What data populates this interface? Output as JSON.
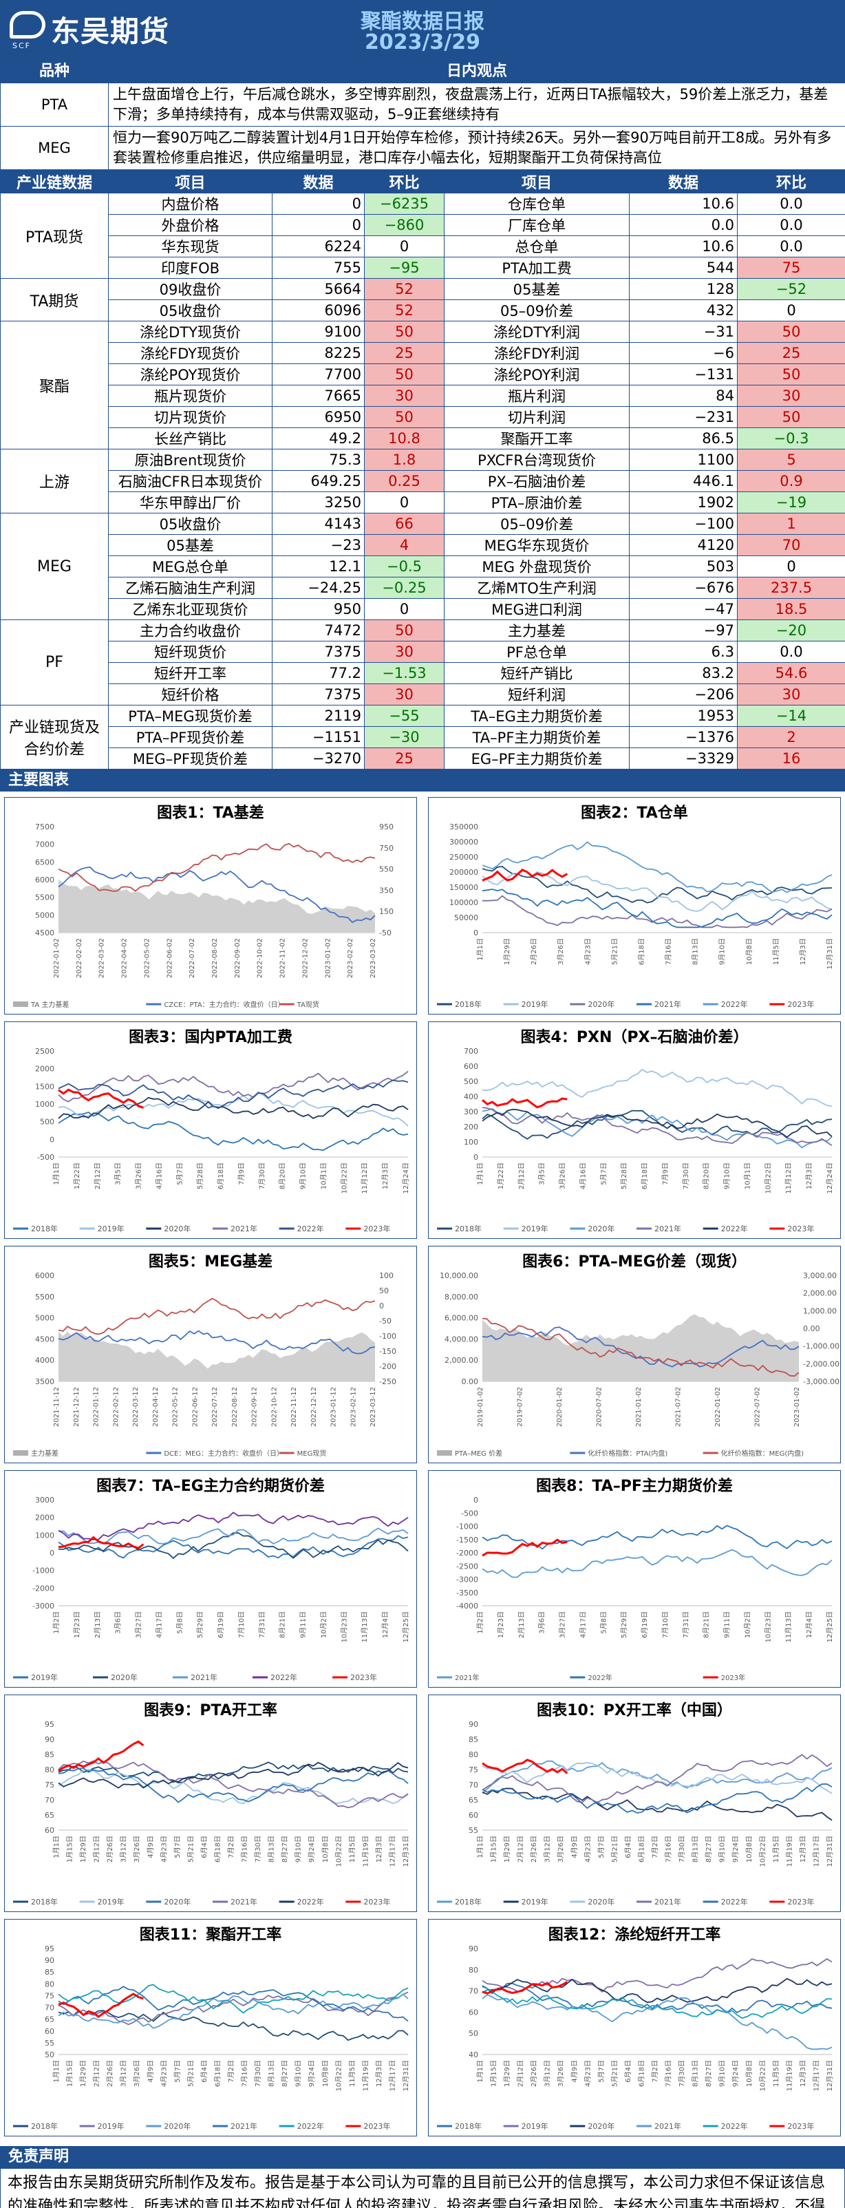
{
  "header": {
    "logo_text": "东吴期货",
    "logo_en": "SCF",
    "title": "聚酯数据日报",
    "date": "2023/3/29"
  },
  "view": {
    "col_product": "品种",
    "col_view": "日内观点",
    "rows": [
      {
        "product": "PTA",
        "text": "上午盘面增仓上行，午后减仓跳水，多空博弈剧烈，夜盘震荡上行，近两日TA振幅较大，59价差上涨乏力，基差下滑；多单持续持有，成本与供需双驱动，5–9正套继续持有"
      },
      {
        "product": "MEG",
        "text": "恒力一套90万吨乙二醇装置计划4月1日开始停车检修，预计持续26天。另外一套90万吨目前开工8成。另外有多套装置检修重启推迟，供应缩量明显，港口库存小幅去化，短期聚酯开工负荷保持高位"
      }
    ]
  },
  "table": {
    "headers": [
      "产业链数据",
      "项目",
      "数据",
      "环比",
      "项目",
      "数据",
      "环比"
    ],
    "groups": [
      {
        "name": "PTA现货",
        "rows": [
          [
            "内盘价格",
            "0",
            "−6235",
            "仓库仓单",
            "10.6",
            "0.0"
          ],
          [
            "外盘价格",
            "0",
            "−860",
            "厂库仓单",
            "0.0",
            "0.0"
          ],
          [
            "华东现货",
            "6224",
            "0",
            "总仓单",
            "10.6",
            "0.0"
          ],
          [
            "印度FOB",
            "755",
            "−95",
            "PTA加工费",
            "544",
            "75"
          ]
        ]
      },
      {
        "name": "TA期货",
        "rows": [
          [
            "09收盘价",
            "5664",
            "52",
            "05基差",
            "128",
            "−52"
          ],
          [
            "05收盘价",
            "6096",
            "52",
            "05–09价差",
            "432",
            "0"
          ]
        ]
      },
      {
        "name": "聚酯",
        "rows": [
          [
            "涤纶DTY现货价",
            "9100",
            "50",
            "涤纶DTY利润",
            "−31",
            "50"
          ],
          [
            "涤纶FDY现货价",
            "8225",
            "25",
            "涤纶FDY利润",
            "−6",
            "25"
          ],
          [
            "涤纶POY现货价",
            "7700",
            "50",
            "涤纶POY利润",
            "−131",
            "50"
          ],
          [
            "瓶片现货价",
            "7665",
            "30",
            "瓶片利润",
            "84",
            "30"
          ],
          [
            "切片现货价",
            "6950",
            "50",
            "切片利润",
            "−231",
            "50"
          ],
          [
            "长丝产销比",
            "49.2",
            "10.8",
            "聚酯开工率",
            "86.5",
            "−0.3"
          ]
        ]
      },
      {
        "name": "上游",
        "rows": [
          [
            "原油Brent现货价",
            "75.3",
            "1.8",
            "PXCFR台湾现货价",
            "1100",
            "5"
          ],
          [
            "石脑油CFR日本现货价",
            "649.25",
            "0.25",
            "PX–石脑油价差",
            "446.1",
            "0.9"
          ],
          [
            "华东甲醇出厂价",
            "3250",
            "0",
            "PTA–原油价差",
            "1902",
            "−19"
          ]
        ]
      },
      {
        "name": "MEG",
        "rows": [
          [
            "05收盘价",
            "4143",
            "66",
            "05–09价差",
            "−100",
            "1"
          ],
          [
            "05基差",
            "−23",
            "4",
            "MEG华东现货价",
            "4120",
            "70"
          ],
          [
            "MEG总仓单",
            "12.1",
            "−0.5",
            "MEG 外盘现货价",
            "503",
            "0"
          ],
          [
            "乙烯石脑油生产利润",
            "−24.25",
            "−0.25",
            "乙烯MTO生产利润",
            "−676",
            "237.5"
          ],
          [
            "乙烯东北亚现货价",
            "950",
            "0",
            "MEG进口利润",
            "−47",
            "18.5"
          ]
        ]
      },
      {
        "name": "PF",
        "rows": [
          [
            "主力合约收盘价",
            "7472",
            "50",
            "主力基差",
            "−97",
            "−20"
          ],
          [
            "短纤现货价",
            "7375",
            "30",
            "PF总仓单",
            "6.3",
            "0.0"
          ],
          [
            "短纤开工率",
            "77.2",
            "−1.53",
            "短纤产销比",
            "83.2",
            "54.6"
          ],
          [
            "短纤价格",
            "7375",
            "30",
            "短纤利润",
            "−206",
            "30"
          ]
        ]
      },
      {
        "name": "产业链现货及合约价差",
        "rows": [
          [
            "PTA–MEG现货价差",
            "2119",
            "−55",
            "TA–EG主力期货价差",
            "1953",
            "−14"
          ],
          [
            "PTA–PF现货价差",
            "−1151",
            "−30",
            "TA–PF主力期货价差",
            "−1376",
            "2"
          ],
          [
            "MEG–PF现货价差",
            "−3270",
            "25",
            "EG–PF主力期货价差",
            "−3329",
            "16"
          ]
        ]
      }
    ]
  },
  "charts_section_title": "主要图表",
  "charts": [
    {
      "title": "图表1：TA基差",
      "xticks": [
        "2022-01-02",
        "2022-02-02",
        "2022-03-02",
        "2022-04-02",
        "2022-05-02",
        "2022-06-02",
        "2022-07-02",
        "2022-08-02",
        "2022-09-02",
        "2022-10-02",
        "2022-11-02",
        "2022-12-02",
        "2023-01-02",
        "2023-02-02",
        "2023-03-02"
      ],
      "yleft": [
        "7500",
        "7000",
        "6500",
        "6000",
        "5500",
        "5000",
        "4500"
      ],
      "yright": [
        "950",
        "750",
        "550",
        "350",
        "150",
        "-50"
      ],
      "legend": [
        {
          "label": "TA 主力基差",
          "color": "#b0b0b0"
        },
        {
          "label": "CZCE：PTA：主力合约：收盘价（日）",
          "color": "#4472c4"
        },
        {
          "label": "TA现货",
          "color": "#c0504d"
        }
      ]
    },
    {
      "title": "图表2：TA仓单",
      "xticks": [
        "1月1日",
        "1月29日",
        "2月26日",
        "3月26日",
        "4月23日",
        "5月21日",
        "6月18日",
        "7月16日",
        "8月13日",
        "9月10日",
        "10月8日",
        "11月5日",
        "12月3日",
        "12月31日"
      ],
      "yleft": [
        "350000",
        "300000",
        "250000",
        "200000",
        "150000",
        "100000",
        "50000",
        "0"
      ],
      "legend": [
        {
          "label": "2018年",
          "color": "#1f4e79"
        },
        {
          "label": "2019年",
          "color": "#9dc3e6"
        },
        {
          "label": "2020年",
          "color": "#7f6fa8"
        },
        {
          "label": "2021年",
          "color": "#2e75b6"
        },
        {
          "label": "2022年",
          "color": "#5b9bd5"
        },
        {
          "label": "2023年",
          "color": "#ff0000"
        }
      ]
    },
    {
      "title": "图表3：国内PTA加工费",
      "xticks": [
        "1月1日",
        "1月22日",
        "2月12日",
        "3月5日",
        "3月26日",
        "4月16日",
        "5月7日",
        "5月28日",
        "6月18日",
        "7月9日",
        "7月30日",
        "8月20日",
        "9月10日",
        "10月1日",
        "10月22日",
        "11月12日",
        "12月3日",
        "12月24日"
      ],
      "yleft": [
        "2500",
        "2000",
        "1500",
        "1000",
        "500",
        "0",
        "-500"
      ],
      "legend": [
        {
          "label": "2018年",
          "color": "#2e75b6"
        },
        {
          "label": "2019年",
          "color": "#9dc3e6"
        },
        {
          "label": "2020年",
          "color": "#1f3864"
        },
        {
          "label": "2021年",
          "color": "#7f6fa8"
        },
        {
          "label": "2022年",
          "color": "#2f5597"
        },
        {
          "label": "2023年",
          "color": "#ff0000"
        }
      ]
    },
    {
      "title": "图表4：PXN（PX–石脑油价差）",
      "xticks": [
        "1月1日",
        "1月22日",
        "2月12日",
        "3月5日",
        "3月26日",
        "4月16日",
        "5月7日",
        "5月28日",
        "6月18日",
        "7月9日",
        "7月30日",
        "8月20日",
        "9月10日",
        "10月1日",
        "10月22日",
        "11月12日",
        "12月3日",
        "12月24日"
      ],
      "yleft": [
        "700",
        "600",
        "500",
        "400",
        "300",
        "200",
        "100",
        "0"
      ],
      "legend": [
        {
          "label": "2018年",
          "color": "#1f4e79"
        },
        {
          "label": "2019年",
          "color": "#9dc3e6"
        },
        {
          "label": "2020年",
          "color": "#5b9bd5"
        },
        {
          "label": "2021年",
          "color": "#7f6fa8"
        },
        {
          "label": "2022年",
          "color": "#1f3864"
        },
        {
          "label": "2023年",
          "color": "#ff0000"
        }
      ]
    },
    {
      "title": "图表5：MEG基差",
      "xticks": [
        "2021-11-12",
        "2021-12-12",
        "2022-01-12",
        "2022-02-12",
        "2022-03-12",
        "2022-04-12",
        "2022-05-12",
        "2022-06-12",
        "2022-07-12",
        "2022-08-12",
        "2022-09-12",
        "2022-10-12",
        "2022-11-12",
        "2022-12-12",
        "2023-01-12",
        "2023-02-12",
        "2023-03-12"
      ],
      "yleft": [
        "6000",
        "5500",
        "5000",
        "4500",
        "4000",
        "3500"
      ],
      "yright": [
        "100",
        "50",
        "0",
        "-50",
        "-100",
        "-150",
        "-200",
        "-250"
      ],
      "legend": [
        {
          "label": "主力基差",
          "color": "#b0b0b0"
        },
        {
          "label": "DCE：MEG：主力合约：收盘价（日）",
          "color": "#4472c4"
        },
        {
          "label": "MEG现货",
          "color": "#c0504d"
        }
      ]
    },
    {
      "title": "图表6：PTA–MEG价差（现货）",
      "xticks": [
        "2019-01-02",
        "2019-07-02",
        "2020-01-02",
        "2020-07-02",
        "2021-01-02",
        "2021-07-02",
        "2022-01-02",
        "2022-07-02",
        "2023-01-02"
      ],
      "yleft": [
        "10,000.00",
        "8,000.00",
        "6,000.00",
        "4,000.00",
        "2,000.00",
        "0.00"
      ],
      "yright": [
        "3,000.00",
        "2,000.00",
        "1,000.00",
        "0.00",
        "-1,000.00",
        "-2,000.00",
        "-3,000.00"
      ],
      "legend": [
        {
          "label": "PTA–MEG 价差",
          "color": "#b0b0b0"
        },
        {
          "label": "化纤价格指数：PTA(内盘)",
          "color": "#4472c4"
        },
        {
          "label": "化纤价格指数：MEG(内盘)",
          "color": "#c0504d"
        }
      ]
    },
    {
      "title": "图表7：TA–EG主力合约期货价差",
      "xticks": [
        "1月2日",
        "1月23日",
        "2月13日",
        "3月6日",
        "3月27日",
        "4月17日",
        "5月8日",
        "5月29日",
        "6月19日",
        "7月10日",
        "7月31日",
        "8月21日",
        "9月11日",
        "10月2日",
        "10月23日",
        "11月13日",
        "12月4日",
        "12月25日"
      ],
      "yleft": [
        "3000",
        "2000",
        "1000",
        "0",
        "-1000",
        "-2000",
        "-3000"
      ],
      "legend": [
        {
          "label": "2019年",
          "color": "#2e75b6"
        },
        {
          "label": "2020年",
          "color": "#1f4e79"
        },
        {
          "label": "2021年",
          "color": "#5b9bd5"
        },
        {
          "label": "2022年",
          "color": "#7030a0"
        },
        {
          "label": "2023年",
          "color": "#ff0000"
        }
      ]
    },
    {
      "title": "图表8：TA–PF主力期货价差",
      "xticks": [
        "1月2日",
        "1月23日",
        "2月13日",
        "3月6日",
        "3月27日",
        "4月17日",
        "5月8日",
        "5月29日",
        "6月19日",
        "7月10日",
        "7月31日",
        "8月21日",
        "9月11日",
        "10月2日",
        "10月23日",
        "11月13日",
        "12月4日",
        "12月25日"
      ],
      "yleft": [
        "0",
        "-500",
        "-1000",
        "-1500",
        "-2000",
        "-2500",
        "-3000",
        "-3500",
        "-4000"
      ],
      "legend": [
        {
          "label": "2021年",
          "color": "#5b9bd5"
        },
        {
          "label": "2022年",
          "color": "#2e75b6"
        },
        {
          "label": "2023年",
          "color": "#ff0000"
        }
      ]
    },
    {
      "title": "图表9：PTA开工率",
      "xticks": [
        "1月1日",
        "1月15日",
        "1月29日",
        "2月12日",
        "2月26日",
        "3月12日",
        "3月26日",
        "4月9日",
        "4月23日",
        "5月7日",
        "5月21日",
        "6月4日",
        "6月18日",
        "7月2日",
        "7月16日",
        "7月30日",
        "8月13日",
        "8月27日",
        "9月10日",
        "9月24日",
        "10月8日",
        "10月22日",
        "11月5日",
        "11月19日",
        "12月3日",
        "12月17日",
        "12月31日"
      ],
      "yleft": [
        "95",
        "90",
        "85",
        "80",
        "75",
        "70",
        "65",
        "60"
      ],
      "legend": [
        {
          "label": "2018年",
          "color": "#1f4e79"
        },
        {
          "label": "2019年",
          "color": "#9dc3e6"
        },
        {
          "label": "2020年",
          "color": "#2e75b6"
        },
        {
          "label": "2021年",
          "color": "#7f6fa8"
        },
        {
          "label": "2022年",
          "color": "#1f3864"
        },
        {
          "label": "2023年",
          "color": "#ff0000"
        }
      ]
    },
    {
      "title": "图表10：PX开工率（中国）",
      "xticks": [
        "1月1日",
        "1月15日",
        "1月29日",
        "2月12日",
        "2月26日",
        "3月12日",
        "3月26日",
        "4月9日",
        "4月23日",
        "5月7日",
        "5月21日",
        "6月4日",
        "6月18日",
        "7月2日",
        "7月16日",
        "7月30日",
        "8月13日",
        "8月27日",
        "9月10日",
        "9月24日",
        "10月8日",
        "10月22日",
        "11月5日",
        "11月19日",
        "12月3日",
        "12月17日",
        "12月31日"
      ],
      "yleft": [
        "90",
        "85",
        "80",
        "75",
        "70",
        "65",
        "60",
        "55"
      ],
      "legend": [
        {
          "label": "2018年",
          "color": "#5b9bd5"
        },
        {
          "label": "2019年",
          "color": "#1f3864"
        },
        {
          "label": "2020年",
          "color": "#9dc3e6"
        },
        {
          "label": "2021年",
          "color": "#7f6fa8"
        },
        {
          "label": "2022年",
          "color": "#2e75b6"
        },
        {
          "label": "2023年",
          "color": "#ff0000"
        }
      ]
    },
    {
      "title": "图表11：聚酯开工率",
      "xticks": [
        "1月1日",
        "1月15日",
        "1月29日",
        "2月12日",
        "2月26日",
        "3月12日",
        "3月26日",
        "4月9日",
        "4月23日",
        "5月7日",
        "5月21日",
        "6月4日",
        "6月18日",
        "7月2日",
        "7月16日",
        "7月30日",
        "8月13日",
        "8月27日",
        "9月10日",
        "9月24日",
        "10月8日",
        "10月22日",
        "11月5日",
        "11月19日",
        "12月3日",
        "12月17日",
        "12月31日"
      ],
      "yleft": [
        "95",
        "90",
        "85",
        "80",
        "75",
        "70",
        "65",
        "60",
        "55",
        "50"
      ],
      "legend": [
        {
          "label": "2018年",
          "color": "#1f4e79"
        },
        {
          "label": "2019年",
          "color": "#7f6fa8"
        },
        {
          "label": "2020年",
          "color": "#5b9bd5"
        },
        {
          "label": "2021年",
          "color": "#2e75b6"
        },
        {
          "label": "2022年",
          "color": "#17a2b8"
        },
        {
          "label": "2023年",
          "color": "#ff0000"
        }
      ]
    },
    {
      "title": "图表12：涤纶短纤开工率",
      "xticks": [
        "1月1日",
        "1月15日",
        "1月29日",
        "2月12日",
        "2月26日",
        "3月12日",
        "3月26日",
        "4月9日",
        "4月23日",
        "5月7日",
        "5月21日",
        "6月4日",
        "6月18日",
        "7月2日",
        "7月16日",
        "7月30日",
        "8月13日",
        "8月27日",
        "9月10日",
        "9月24日",
        "10月8日",
        "10月22日",
        "11月5日",
        "11月19日",
        "12月3日",
        "12月17日",
        "12月31日"
      ],
      "yleft": [
        "90",
        "80",
        "70",
        "60",
        "50",
        "40"
      ],
      "legend": [
        {
          "label": "2018年",
          "color": "#2e75b6"
        },
        {
          "label": "2019年",
          "color": "#7f6fa8"
        },
        {
          "label": "2020年",
          "color": "#1f3864"
        },
        {
          "label": "2021年",
          "color": "#5b9bd5"
        },
        {
          "label": "2022年",
          "color": "#17a2b8"
        },
        {
          "label": "2023年",
          "color": "#ff0000"
        }
      ]
    }
  ],
  "disclaimer": {
    "title": "免责声明",
    "text": "本报告由东吴期货研究所制作及发布。报告是基于本公司认为可靠的且目前已公开的信息撰写，本公司力求但不保证该信息的准确性和完整性，所表述的意见并不构成对任何人的投资建议，投资者需自行承担风险。未经本公司事先书面授权，不得对本报告进行任何有悖原意的引用、删节、修改、及用于其它用途。"
  }
}
